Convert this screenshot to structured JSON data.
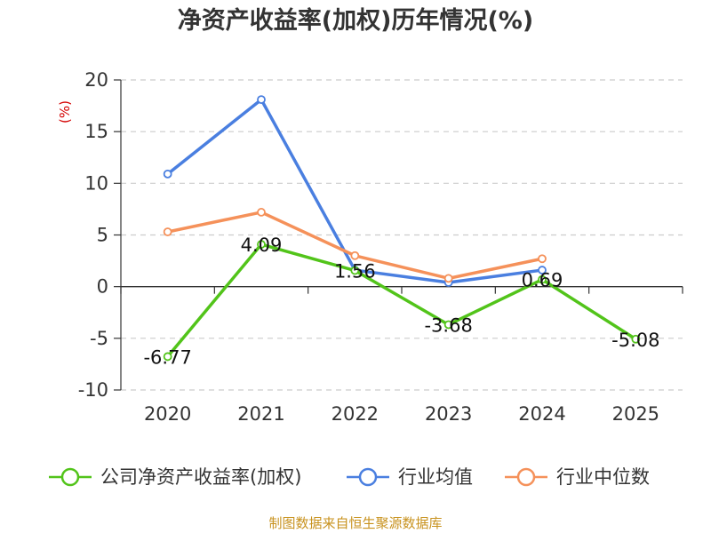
{
  "chart_data": {
    "type": "line",
    "title": "净资产收益率(加权)历年情况(%)",
    "ylabel": "(%)",
    "xlabel": "",
    "categories": [
      "2020",
      "2021",
      "2022",
      "2023",
      "2024",
      "2025"
    ],
    "ylim": [
      -10,
      20
    ],
    "yticks": [
      -10,
      -5,
      0,
      5,
      10,
      15,
      20
    ],
    "ytick_labels": [
      "-10",
      "-5",
      "0",
      "5",
      "10",
      "15",
      "20"
    ],
    "grid": true,
    "legend_position": "bottom",
    "series": [
      {
        "name": "公司净资产收益率(加权)",
        "color": "#52c41a",
        "values": [
          -6.77,
          4.09,
          1.56,
          -3.68,
          0.69,
          -5.08
        ],
        "labels": [
          "-6.77",
          "4.09",
          "1.56",
          "-3.68",
          "0.69",
          "-5.08"
        ]
      },
      {
        "name": "行业均值",
        "color": "#4a7fe0",
        "values": [
          10.9,
          18.1,
          1.6,
          0.4,
          1.6,
          null
        ]
      },
      {
        "name": "行业中位数",
        "color": "#f5915a",
        "values": [
          5.3,
          7.2,
          3.0,
          0.8,
          2.7,
          null
        ]
      }
    ]
  },
  "source_text": "制图数据来自恒生聚源数据库"
}
